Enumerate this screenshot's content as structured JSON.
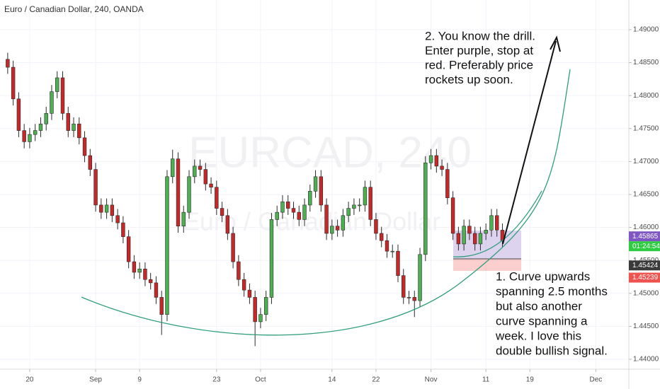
{
  "chart_data": {
    "type": "candlestick",
    "title": "Euro / Canadian Dollar, 240, OANDA",
    "watermark": "EURCAD, 240",
    "watermark_subtitle": "Euro / Canadian Dollar",
    "x": [
      -4,
      -3,
      -2,
      -1,
      0,
      1,
      2,
      3,
      4,
      5,
      6,
      7,
      8,
      9,
      10,
      11,
      12,
      13,
      14,
      15,
      16,
      17,
      18,
      19,
      20,
      21,
      22,
      23,
      24,
      25,
      26,
      27,
      28,
      29,
      30,
      31,
      32,
      33,
      34,
      35,
      36,
      37,
      38,
      39,
      40,
      41,
      42,
      43,
      44,
      45,
      46,
      47,
      48,
      49,
      50,
      51,
      52,
      53,
      54,
      55,
      56,
      57,
      58,
      59,
      60,
      61,
      62,
      63,
      64,
      65,
      66,
      67,
      68,
      69,
      70,
      71,
      72,
      73,
      74,
      75,
      76,
      77,
      78,
      79,
      80,
      81,
      82,
      83,
      84,
      85,
      86
    ],
    "open": [
      1.4855,
      1.4843,
      1.4795,
      1.4747,
      1.473,
      1.4741,
      1.4747,
      1.4757,
      1.4773,
      1.4806,
      1.4827,
      1.4773,
      1.4747,
      1.4757,
      1.4736,
      1.4709,
      1.4688,
      1.4634,
      1.4623,
      1.4634,
      1.4618,
      1.4607,
      1.4586,
      1.4548,
      1.4532,
      1.4537,
      1.4521,
      1.4516,
      1.4494,
      1.4468,
      1.4677,
      1.4704,
      1.4602,
      1.4623,
      1.4677,
      1.4693,
      1.4688,
      1.4666,
      1.4661,
      1.4629,
      1.4618,
      1.4591,
      1.4548,
      1.4521,
      1.4505,
      1.4494,
      1.4457,
      1.4468,
      1.4494,
      1.4612,
      1.4623,
      1.4639,
      1.4629,
      1.4623,
      1.4612,
      1.4634,
      1.4655,
      1.4677,
      1.4634,
      1.4591,
      1.4602,
      1.4596,
      1.4618,
      1.4629,
      1.4634,
      1.4634,
      1.4661,
      1.4612,
      1.4591,
      1.458,
      1.4564,
      1.4564,
      1.4527,
      1.4494,
      1.4494,
      1.4489,
      1.4559,
      1.4698,
      1.4709,
      1.4693,
      1.4688,
      1.4645,
      1.4591,
      1.4575,
      1.4602,
      1.4591,
      1.4575,
      1.4591,
      1.4596,
      1.4618,
      1.4596
    ],
    "high": [
      1.4865,
      1.4853,
      1.4805,
      1.4757,
      1.4751,
      1.4757,
      1.4767,
      1.4783,
      1.4816,
      1.4837,
      1.4837,
      1.4783,
      1.4767,
      1.4767,
      1.4746,
      1.4719,
      1.4698,
      1.4644,
      1.4644,
      1.4644,
      1.4628,
      1.4617,
      1.4596,
      1.4558,
      1.4547,
      1.4547,
      1.4531,
      1.4526,
      1.4504,
      1.4687,
      1.4718,
      1.4714,
      1.4633,
      1.4687,
      1.4703,
      1.4703,
      1.4698,
      1.4676,
      1.4671,
      1.4639,
      1.4628,
      1.4601,
      1.4558,
      1.4531,
      1.4515,
      1.4504,
      1.4478,
      1.4504,
      1.4622,
      1.4633,
      1.4649,
      1.4649,
      1.4639,
      1.4633,
      1.4644,
      1.4665,
      1.4687,
      1.4687,
      1.4644,
      1.4612,
      1.4612,
      1.4628,
      1.4639,
      1.4644,
      1.4644,
      1.4671,
      1.4671,
      1.4622,
      1.4601,
      1.459,
      1.4574,
      1.4574,
      1.4537,
      1.4504,
      1.4504,
      1.4569,
      1.4708,
      1.4719,
      1.4719,
      1.4703,
      1.4698,
      1.4655,
      1.4601,
      1.4612,
      1.4612,
      1.4601,
      1.4601,
      1.4606,
      1.4628,
      1.4628,
      1.4606
    ],
    "low": [
      1.4833,
      1.4785,
      1.4737,
      1.472,
      1.472,
      1.4731,
      1.4737,
      1.4747,
      1.4763,
      1.4796,
      1.4763,
      1.4737,
      1.4737,
      1.4726,
      1.4699,
      1.4678,
      1.4624,
      1.4613,
      1.4613,
      1.4608,
      1.4597,
      1.4576,
      1.4538,
      1.4522,
      1.4522,
      1.4511,
      1.4506,
      1.4484,
      1.4437,
      1.4458,
      1.4667,
      1.4592,
      1.4592,
      1.4613,
      1.4667,
      1.4678,
      1.4656,
      1.4651,
      1.4619,
      1.4608,
      1.4581,
      1.4538,
      1.4511,
      1.4495,
      1.4484,
      1.442,
      1.4447,
      1.4458,
      1.4484,
      1.4602,
      1.4613,
      1.4619,
      1.4613,
      1.4602,
      1.4602,
      1.4624,
      1.4645,
      1.4624,
      1.4581,
      1.4581,
      1.4586,
      1.4586,
      1.4608,
      1.4619,
      1.4624,
      1.4624,
      1.4602,
      1.4581,
      1.457,
      1.4554,
      1.4554,
      1.4517,
      1.4484,
      1.4484,
      1.4464,
      1.4479,
      1.4549,
      1.4688,
      1.4683,
      1.4678,
      1.4635,
      1.4581,
      1.4565,
      1.4565,
      1.4581,
      1.4565,
      1.4565,
      1.4581,
      1.4586,
      1.4586,
      1.457
    ],
    "close": [
      1.4843,
      1.4795,
      1.4747,
      1.473,
      1.4741,
      1.4747,
      1.4757,
      1.4773,
      1.4806,
      1.4827,
      1.4773,
      1.4747,
      1.4757,
      1.4736,
      1.4709,
      1.4688,
      1.4634,
      1.4623,
      1.4634,
      1.4618,
      1.4607,
      1.4586,
      1.4548,
      1.4532,
      1.4537,
      1.4521,
      1.4516,
      1.4494,
      1.4468,
      1.4677,
      1.4704,
      1.4602,
      1.4623,
      1.4677,
      1.4693,
      1.4688,
      1.4666,
      1.4661,
      1.4629,
      1.4618,
      1.4591,
      1.4548,
      1.4521,
      1.4505,
      1.4494,
      1.4457,
      1.4468,
      1.4494,
      1.4612,
      1.4623,
      1.4639,
      1.4629,
      1.4623,
      1.4612,
      1.4634,
      1.4655,
      1.4677,
      1.4634,
      1.4591,
      1.4602,
      1.4596,
      1.4618,
      1.4629,
      1.4634,
      1.4634,
      1.4661,
      1.4612,
      1.4591,
      1.458,
      1.4564,
      1.4564,
      1.4527,
      1.4494,
      1.4494,
      1.4489,
      1.4559,
      1.4698,
      1.4709,
      1.4693,
      1.4688,
      1.4645,
      1.4591,
      1.4575,
      1.4602,
      1.4591,
      1.4575,
      1.4591,
      1.4596,
      1.4618,
      1.4596,
      1.458
    ],
    "up_color": "#4caf50",
    "down_color": "#c62828",
    "xlim": [
      -5.4,
      109
    ],
    "ylim": [
      1.4385,
      1.4945
    ],
    "xticks": [
      {
        "value": 0,
        "label": "20"
      },
      {
        "value": 12,
        "label": "Sep"
      },
      {
        "value": 20,
        "label": "9"
      },
      {
        "value": 34,
        "label": "23"
      },
      {
        "value": 42,
        "label": "Oct"
      },
      {
        "value": 55,
        "label": "14"
      },
      {
        "value": 63,
        "label": "22"
      },
      {
        "value": 73,
        "label": "Nov"
      },
      {
        "value": 83,
        "label": "11"
      },
      {
        "value": 91,
        "label": "19"
      },
      {
        "value": 103,
        "label": "Dec"
      }
    ],
    "yticks": [
      {
        "value": 1.44,
        "label": "1.44000"
      },
      {
        "value": 1.445,
        "label": "1.44500"
      },
      {
        "value": 1.45,
        "label": "1.45000"
      },
      {
        "value": 1.455,
        "label": "1.45500"
      },
      {
        "value": 1.46,
        "label": "1.46000"
      },
      {
        "value": 1.465,
        "label": "1.46500"
      },
      {
        "value": 1.47,
        "label": "1.47000"
      },
      {
        "value": 1.475,
        "label": "1.47500"
      },
      {
        "value": 1.48,
        "label": "1.48000"
      },
      {
        "value": 1.485,
        "label": "1.48500"
      },
      {
        "value": 1.49,
        "label": "1.49000"
      }
    ],
    "grid": true,
    "price_tags": [
      {
        "value": 1.45865,
        "label": "1.45865",
        "color": "#7e57c2",
        "countdown": "01:24:54",
        "countdown_color": "#2ecc40"
      },
      {
        "value": 1.45424,
        "label": "1.45424",
        "color": "#3a3a3a"
      },
      {
        "value": 1.45239,
        "label": "1.45239",
        "color": "#ef5350"
      }
    ],
    "annotations": [
      {
        "lines": [
          "2. You know the drill.",
          "Enter purple, stop at",
          "red. Preferably price",
          "rockets up soon."
        ]
      },
      {
        "lines": [
          "1. Curve upwards",
          "spanning 2.5 months",
          "but also another",
          "curve spanning a",
          "week. I love this",
          "double bullish signal."
        ]
      }
    ]
  }
}
